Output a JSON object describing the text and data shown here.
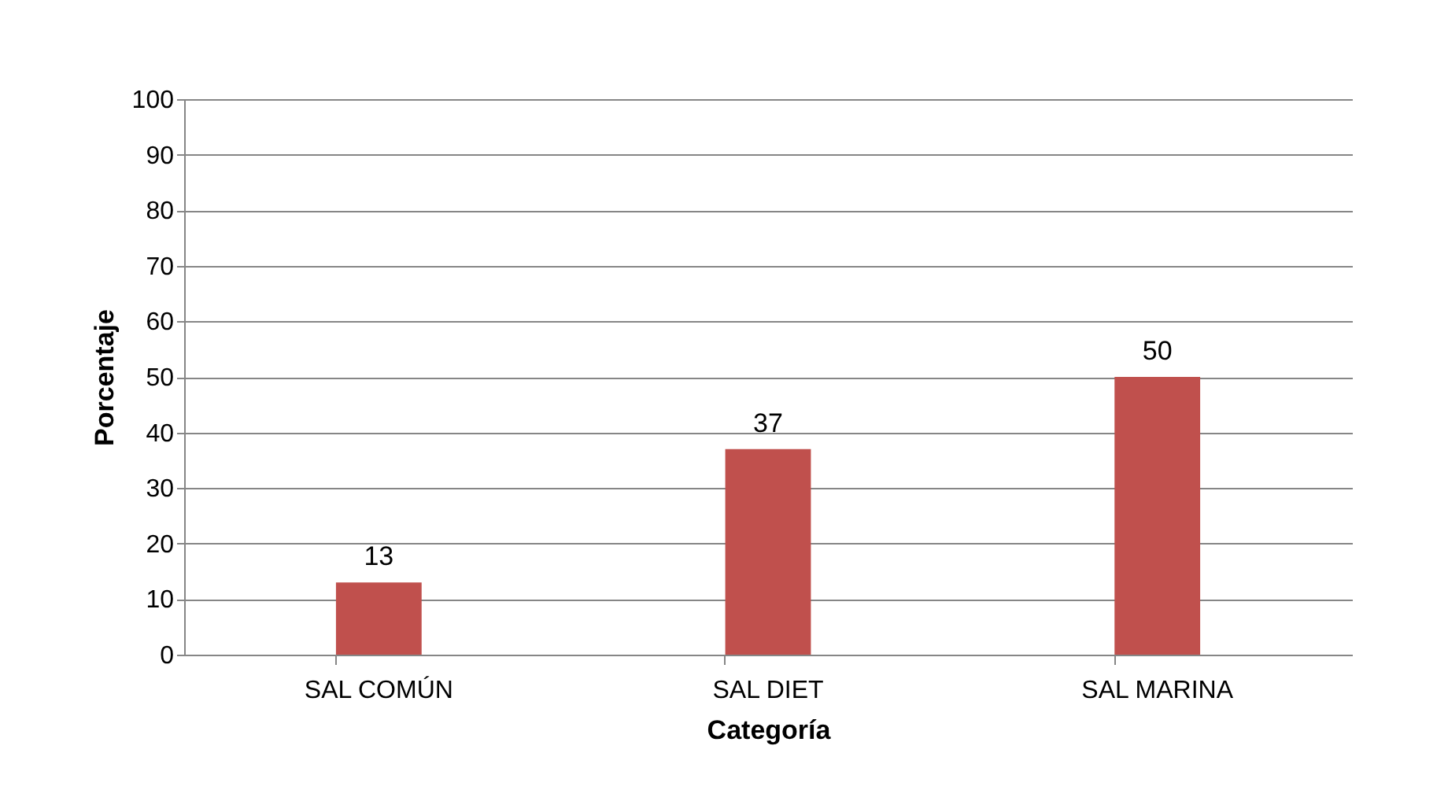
{
  "chart_data": {
    "type": "bar",
    "xlabel": "Categoría",
    "ylabel": "Porcentaje",
    "categories": [
      "SAL COMÚN",
      "SAL DIET",
      "SAL MARINA"
    ],
    "values": [
      13,
      37,
      50
    ],
    "color": "#c0504d",
    "ylim": [
      0,
      100
    ],
    "yticks": [
      0,
      10,
      20,
      30,
      40,
      50,
      60,
      70,
      80,
      90,
      100
    ],
    "grid": "y",
    "data_labels": true
  }
}
